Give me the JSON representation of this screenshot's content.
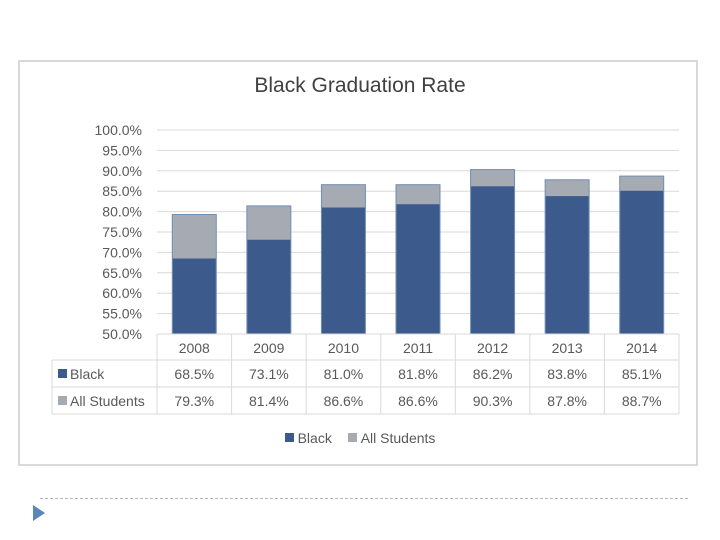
{
  "chart_data": {
    "type": "bar",
    "stacked_overlay": true,
    "title": "Black Graduation Rate",
    "categories": [
      "2008",
      "2009",
      "2010",
      "2011",
      "2012",
      "2013",
      "2014"
    ],
    "series": [
      {
        "name": "Black",
        "values": [
          68.5,
          73.1,
          81.0,
          81.8,
          86.2,
          83.8,
          85.1
        ],
        "labels": [
          "68.5%",
          "73.1%",
          "81.0%",
          "81.8%",
          "86.2%",
          "83.8%",
          "85.1%"
        ],
        "color": "#3c5a8c"
      },
      {
        "name": "All Students",
        "values": [
          79.3,
          81.4,
          86.6,
          86.6,
          90.3,
          87.8,
          88.7
        ],
        "labels": [
          "79.3%",
          "81.4%",
          "86.6%",
          "86.6%",
          "90.3%",
          "87.8%",
          "88.7%"
        ],
        "color": "#a6aab3"
      }
    ],
    "ylim": [
      50,
      100
    ],
    "yticks": [
      "50.0%",
      "55.0%",
      "60.0%",
      "65.0%",
      "70.0%",
      "75.0%",
      "80.0%",
      "85.0%",
      "90.0%",
      "95.0%",
      "100.0%"
    ],
    "grid": true,
    "legend_placement": "bottom",
    "data_table": true
  }
}
